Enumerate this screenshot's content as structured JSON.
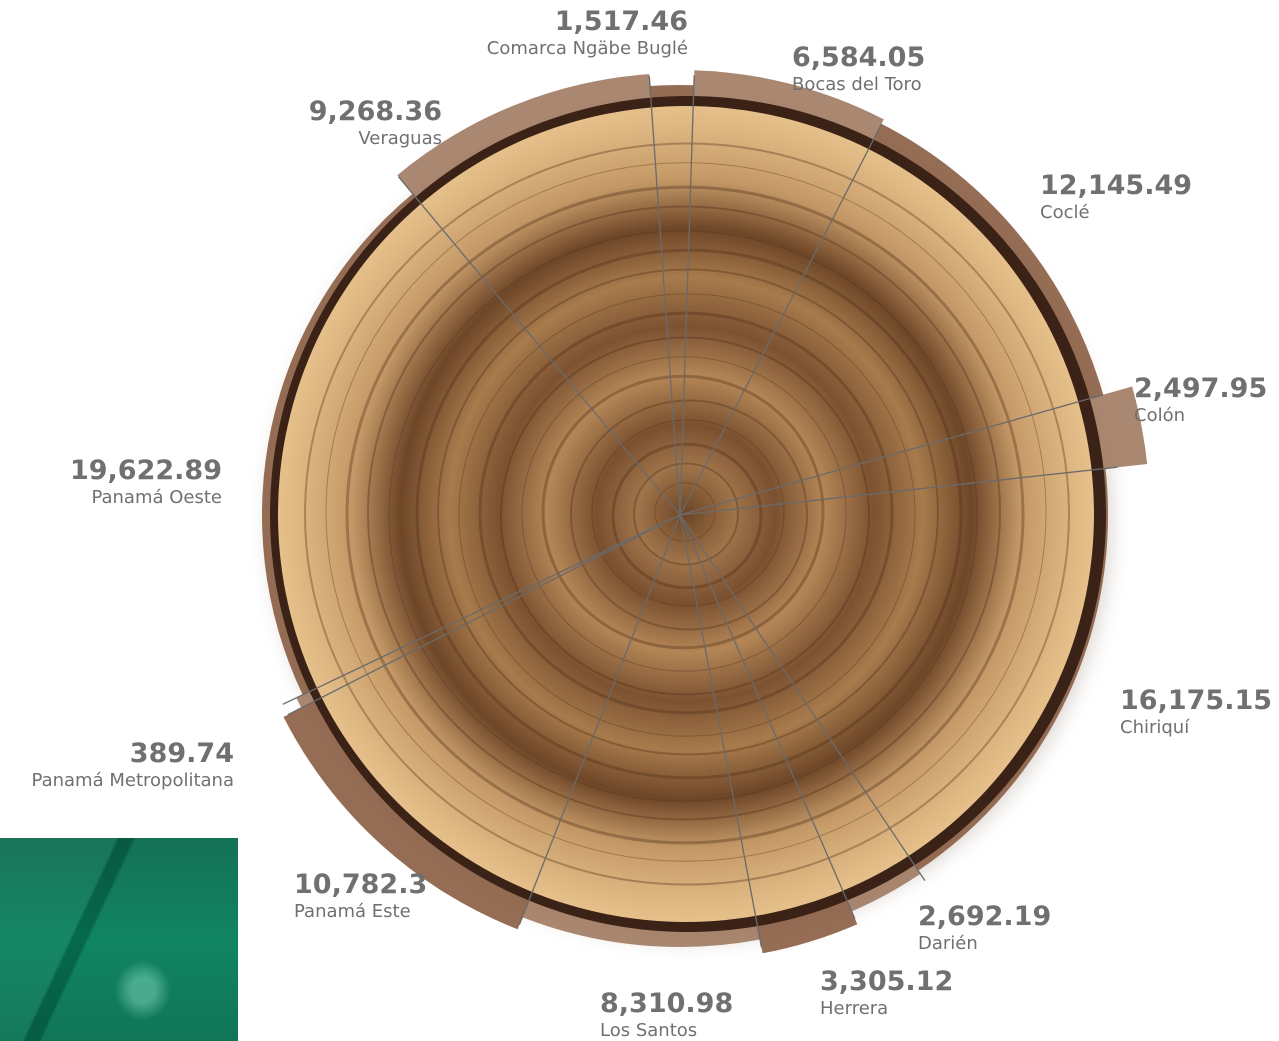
{
  "chart_data": {
    "type": "pie",
    "title": "",
    "series": [
      {
        "name": "Comarca Ngäbe Buglé",
        "value": 1517.46,
        "value_label": "1,517.46"
      },
      {
        "name": "Bocas del Toro",
        "value": 6584.05,
        "value_label": "6,584.05"
      },
      {
        "name": "Coclé",
        "value": 12145.49,
        "value_label": "12,145.49"
      },
      {
        "name": "Colón",
        "value": 2497.95,
        "value_label": "2,497.95"
      },
      {
        "name": "Chiriquí",
        "value": 16175.15,
        "value_label": "16,175.15"
      },
      {
        "name": "Darién",
        "value": 2692.19,
        "value_label": "2,692.19"
      },
      {
        "name": "Herrera",
        "value": 3305.12,
        "value_label": "3,305.12"
      },
      {
        "name": "Los Santos",
        "value": 8310.98,
        "value_label": "8,310.98"
      },
      {
        "name": "Panamá Este",
        "value": 10782.3,
        "value_label": "10,782.3"
      },
      {
        "name": "Panamá Metropolitana",
        "value": 389.74,
        "value_label": "389.74"
      },
      {
        "name": "Panamá Oeste",
        "value": 19622.89,
        "value_label": "19,622.89"
      },
      {
        "name": "Veraguas",
        "value": 9268.36,
        "value_label": "9,268.36"
      }
    ],
    "legend": "none",
    "colors": {
      "label_text": "#707070",
      "divider": "#6a6a6a",
      "bark": "#3b2216",
      "wood_light": "#c4935e",
      "wood_dark": "#6b4426",
      "halo": "#8a6248",
      "green_panel": "#0a7a56"
    }
  }
}
